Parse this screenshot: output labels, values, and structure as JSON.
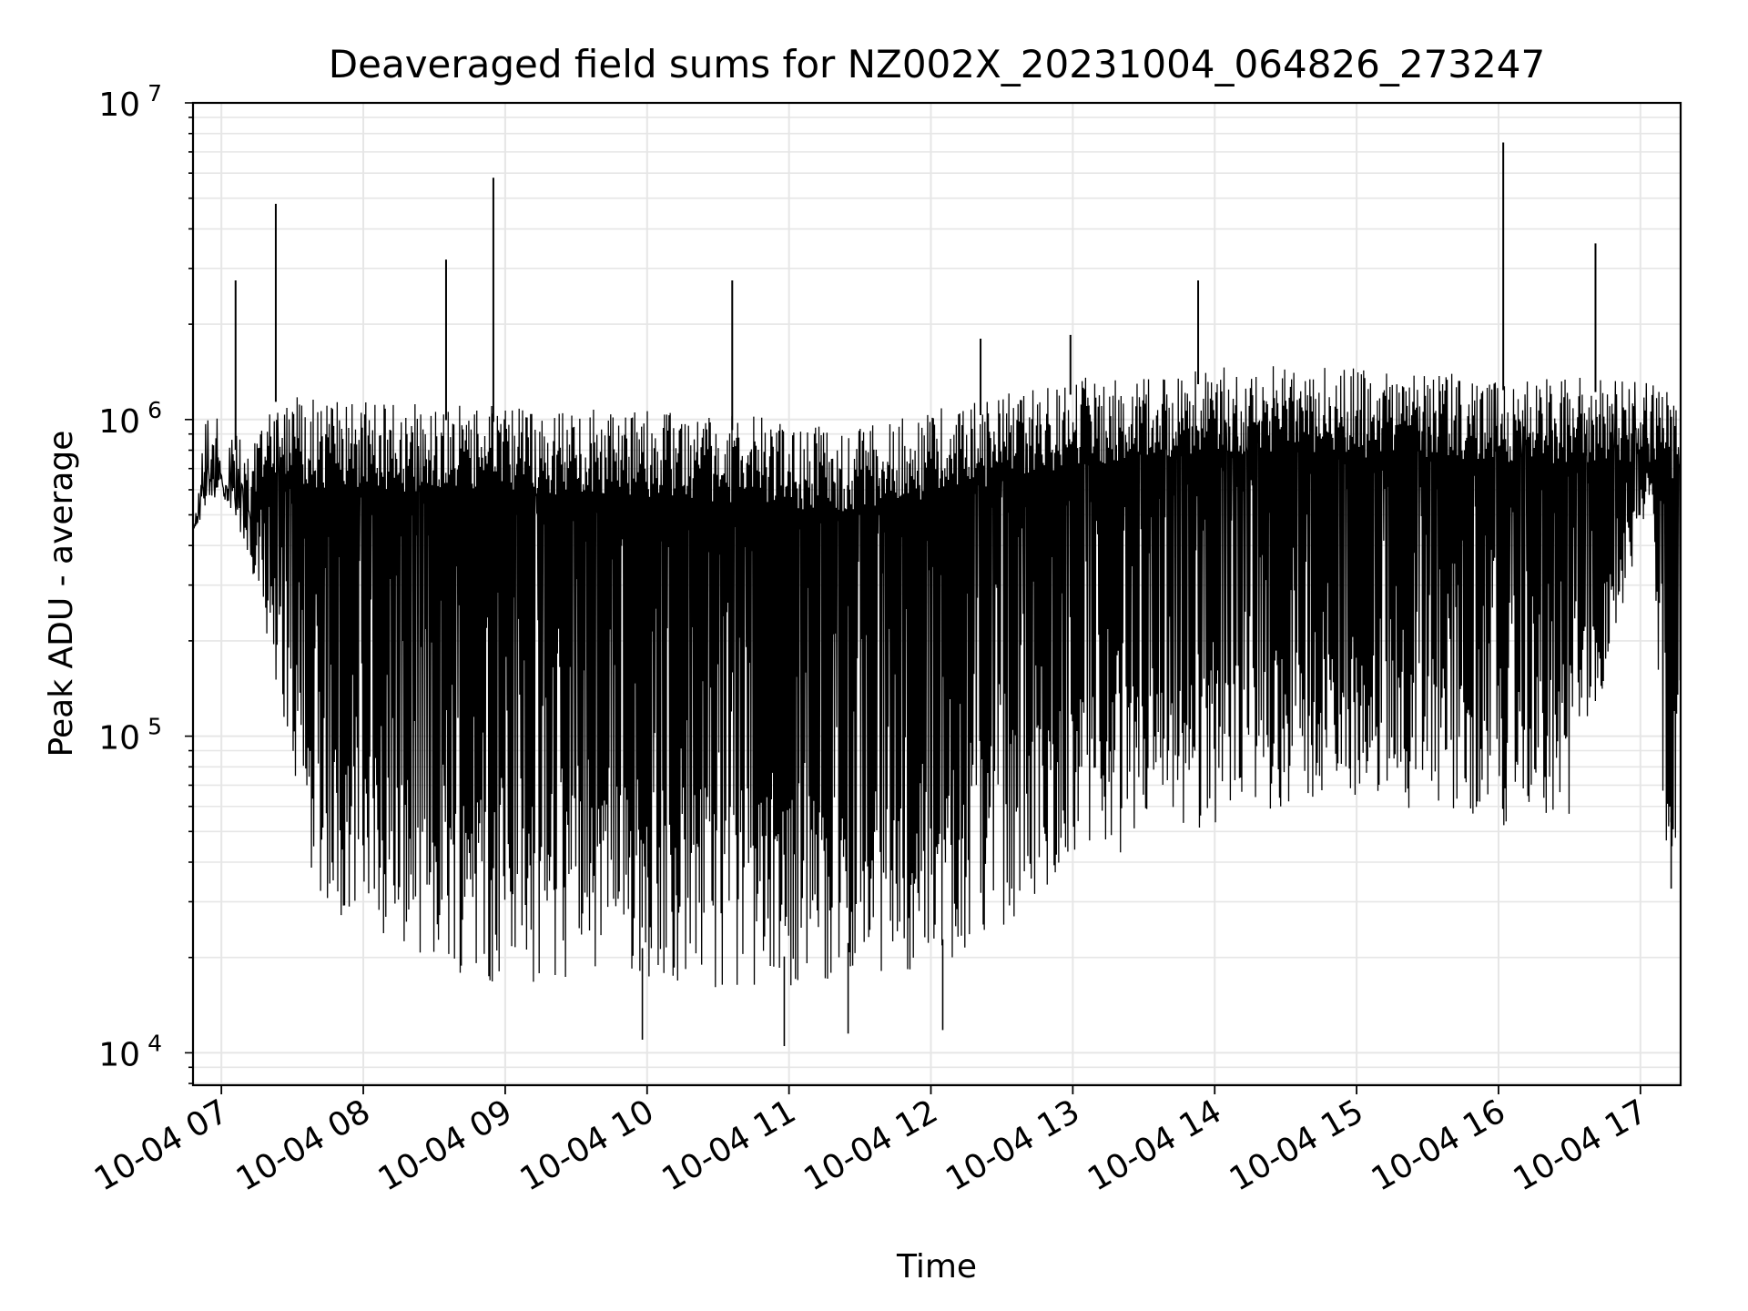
{
  "chart_data": {
    "type": "line",
    "title": "Deaveraged field sums for NZ002X_20231004_064826_273247",
    "xlabel": "Time",
    "ylabel": "Peak ADU - average",
    "xlim": [
      "2023-10-04 06:48",
      "2023-10-04 17:17"
    ],
    "ylim": [
      7900,
      10000000
    ],
    "yscale": "log",
    "grid": true,
    "line_color": "#000000",
    "grid_color": "#e6e6e6",
    "x_ticks": [
      "10-04 07",
      "10-04 08",
      "10-04 09",
      "10-04 10",
      "10-04 11",
      "10-04 12",
      "10-04 13",
      "10-04 14",
      "10-04 15",
      "10-04 16",
      "10-04 17"
    ],
    "x_tick_times": [
      "2023-10-04 07:00",
      "2023-10-04 08:00",
      "2023-10-04 09:00",
      "2023-10-04 10:00",
      "2023-10-04 11:00",
      "2023-10-04 12:00",
      "2023-10-04 13:00",
      "2023-10-04 14:00",
      "2023-10-04 15:00",
      "2023-10-04 16:00",
      "2023-10-04 17:00"
    ],
    "y_ticks": [
      {
        "value": 10000,
        "base": "10",
        "exp": "4"
      },
      {
        "value": 100000,
        "base": "10",
        "exp": "5"
      },
      {
        "value": 1000000,
        "base": "10",
        "exp": "6"
      },
      {
        "value": 10000000,
        "base": "10",
        "exp": "7"
      }
    ],
    "series": [
      {
        "upper_envelope": [
          [
            "2023-10-04 06:48",
            400000
          ],
          [
            "2023-10-04 06:53",
            1200000
          ],
          [
            "2023-10-04 07:00",
            950000
          ],
          [
            "2023-10-04 07:06",
            900000
          ],
          [
            "2023-10-04 07:12",
            800000
          ],
          [
            "2023-10-04 07:20",
            1300000
          ],
          [
            "2023-10-04 07:40",
            1150000
          ],
          [
            "2023-10-04 08:30",
            1120000
          ],
          [
            "2023-10-04 09:30",
            1080000
          ],
          [
            "2023-10-04 10:30",
            1050000
          ],
          [
            "2023-10-04 11:30",
            950000
          ],
          [
            "2023-10-04 12:30",
            1200000
          ],
          [
            "2023-10-04 13:00",
            1350000
          ],
          [
            "2023-10-04 13:30",
            1420000
          ],
          [
            "2023-10-04 14:30",
            1500000
          ],
          [
            "2023-10-04 15:30",
            1400000
          ],
          [
            "2023-10-04 16:30",
            1380000
          ],
          [
            "2023-10-04 17:05",
            1350000
          ],
          [
            "2023-10-04 17:17",
            1200000
          ]
        ],
        "lower_envelope": [
          [
            "2023-10-04 06:48",
            450000
          ],
          [
            "2023-10-04 07:00",
            600000
          ],
          [
            "2023-10-04 07:15",
            300000
          ],
          [
            "2023-10-04 07:30",
            80000
          ],
          [
            "2023-10-04 07:40",
            30000
          ],
          [
            "2023-10-04 08:00",
            24000
          ],
          [
            "2023-10-04 08:30",
            19000
          ],
          [
            "2023-10-04 09:00",
            16000
          ],
          [
            "2023-10-04 09:30",
            17000
          ],
          [
            "2023-10-04 10:00",
            17000
          ],
          [
            "2023-10-04 10:30",
            16000
          ],
          [
            "2023-10-04 11:00",
            16000
          ],
          [
            "2023-10-04 11:30",
            18000
          ],
          [
            "2023-10-04 12:00",
            17000
          ],
          [
            "2023-10-04 12:30",
            25000
          ],
          [
            "2023-10-04 13:00",
            38000
          ],
          [
            "2023-10-04 13:30",
            45000
          ],
          [
            "2023-10-04 14:00",
            52000
          ],
          [
            "2023-10-04 14:30",
            60000
          ],
          [
            "2023-10-04 15:00",
            62000
          ],
          [
            "2023-10-04 15:30",
            58000
          ],
          [
            "2023-10-04 16:00",
            52000
          ],
          [
            "2023-10-04 16:30",
            55000
          ],
          [
            "2023-10-04 17:00",
            400000
          ],
          [
            "2023-10-04 17:05",
            600000
          ],
          [
            "2023-10-04 17:10",
            40000
          ],
          [
            "2023-10-04 17:17",
            50000
          ]
        ],
        "spikes": [
          [
            "2023-10-04 07:06",
            2750000
          ],
          [
            "2023-10-04 07:23",
            4800000
          ],
          [
            "2023-10-04 08:35",
            3200000
          ],
          [
            "2023-10-04 08:55",
            5800000
          ],
          [
            "2023-10-04 10:36",
            2750000
          ],
          [
            "2023-10-04 12:21",
            1800000
          ],
          [
            "2023-10-04 12:59",
            1850000
          ],
          [
            "2023-10-04 13:53",
            2750000
          ],
          [
            "2023-10-04 16:02",
            7500000
          ],
          [
            "2023-10-04 16:41",
            3600000
          ]
        ],
        "dips": [
          [
            "2023-10-04 09:58",
            11000
          ],
          [
            "2023-10-04 10:58",
            10500
          ],
          [
            "2023-10-04 11:25",
            11500
          ],
          [
            "2023-10-04 12:05",
            11800
          ],
          [
            "2023-10-04 17:13",
            33000
          ]
        ]
      }
    ]
  }
}
